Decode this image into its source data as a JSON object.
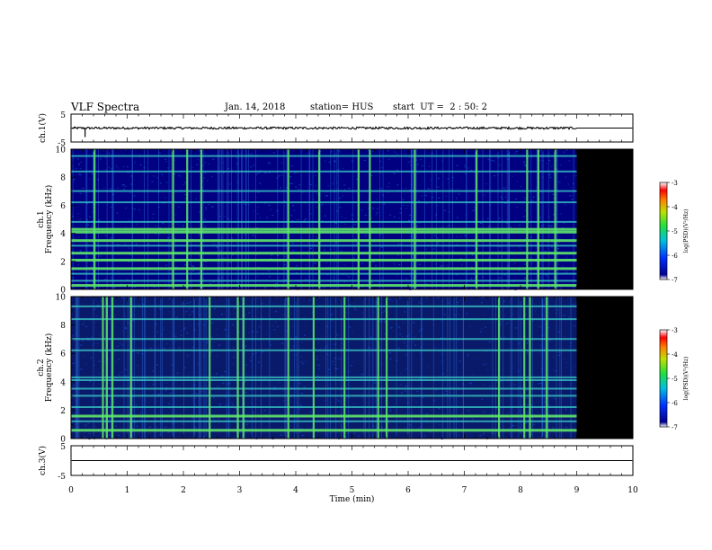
{
  "header": {
    "title": "VLF Spectra",
    "date": "Jan. 14, 2018",
    "station": "station= HUS",
    "start": "start  UT =  2 : 50: 2"
  },
  "colors": {
    "spec_bg": "#000080",
    "spec_dark": "#0a1a6a",
    "band": "#3ad0c8",
    "band_bright": "#5ee86a",
    "nodata": "#000000"
  },
  "chart_data": [
    {
      "panel": "ch1_waveform",
      "type": "line",
      "ylabel": "ch.1(V)",
      "ylim": [
        -5,
        5
      ],
      "yticks": [
        "5",
        "-5"
      ],
      "xlim": [
        0,
        10
      ],
      "data_end_min": 9.0,
      "level": 0,
      "amplitude": 0.4
    },
    {
      "panel": "ch1_spectrogram",
      "type": "heatmap",
      "panel_label": "ch.1",
      "ylabel": "Frequency (kHz)",
      "ylim": [
        0,
        10
      ],
      "yticks": [
        "0",
        "2",
        "4",
        "6",
        "8",
        "10"
      ],
      "xlim": [
        0,
        10
      ],
      "data_end_min": 9.0,
      "colorbar": {
        "min": -7,
        "max": -3,
        "ticks": [
          "-3",
          "-4",
          "-5",
          "-6",
          "-7"
        ],
        "label": "log(PSD)(V²/Hz)"
      },
      "bands_khz": [
        0.3,
        0.6,
        1.1,
        1.5,
        2.1,
        2.6,
        3.1,
        3.5,
        4.1,
        4.3,
        4.8,
        6.2,
        7.0,
        8.4,
        9.5
      ],
      "bright_bands_khz": [
        0.3,
        1.5,
        2.1,
        2.6,
        3.5,
        4.1,
        4.3
      ],
      "bursts_min": [
        0.4,
        1.8,
        2.05,
        2.3,
        3.85,
        4.4,
        5.1,
        5.3,
        6.1,
        7.2,
        8.1,
        8.3,
        8.6
      ]
    },
    {
      "panel": "ch2_spectrogram",
      "type": "heatmap",
      "panel_label": "ch.2",
      "ylabel": "Frequency (kHz)",
      "ylim": [
        0,
        10
      ],
      "yticks": [
        "0",
        "2",
        "4",
        "6",
        "8",
        "10"
      ],
      "xlim": [
        0,
        10
      ],
      "data_end_min": 9.0,
      "colorbar": {
        "min": -7,
        "max": -3,
        "ticks": [
          "-3",
          "-4",
          "-5",
          "-6",
          "-7"
        ],
        "label": "log(PSD)(V²/Hz)"
      },
      "bands_khz": [
        0.6,
        1.2,
        1.6,
        2.2,
        3.0,
        3.5,
        4.1,
        4.3,
        6.2,
        7.0,
        8.4,
        9.3
      ],
      "bright_bands_khz": [
        0.6,
        1.6
      ],
      "bursts_min": [
        0.55,
        0.62,
        0.72,
        1.05,
        2.45,
        2.95,
        3.05,
        3.85,
        4.3,
        4.85,
        5.45,
        5.6,
        7.6,
        8.05,
        8.15,
        8.45
      ]
    },
    {
      "panel": "ch3_waveform",
      "type": "line",
      "ylabel": "ch.3(V)",
      "ylim": [
        -5,
        5
      ],
      "yticks": [
        "5",
        "-5"
      ],
      "xlim": [
        0,
        10
      ],
      "data_end_min": 10,
      "level": 0,
      "amplitude": 0
    }
  ],
  "xaxis": {
    "label": "Time (min)",
    "ticks": [
      "0",
      "1",
      "2",
      "3",
      "4",
      "5",
      "6",
      "7",
      "8",
      "9",
      "10"
    ]
  }
}
